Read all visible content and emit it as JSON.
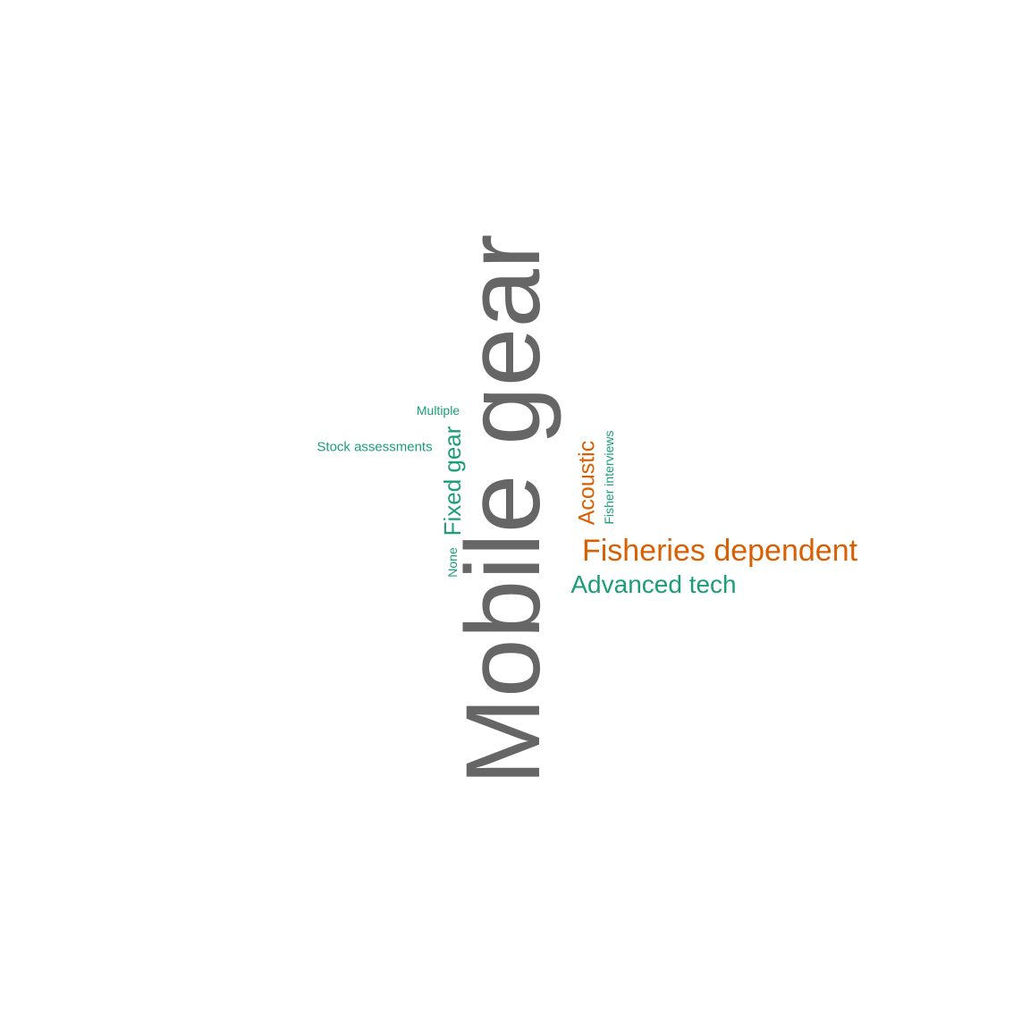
{
  "colors": {
    "gray": "#666666",
    "orange": "#d95f02",
    "teal": "#1b9e77",
    "background": "#ffffff"
  },
  "words": {
    "mobile_gear": {
      "text": "Mobile gear",
      "color": "#666666",
      "rotated": true
    },
    "fisheries_dependent": {
      "text": "Fisheries dependent",
      "color": "#d95f02",
      "rotated": false
    },
    "advanced_tech": {
      "text": "Advanced tech",
      "color": "#1b9e77",
      "rotated": false
    },
    "fixed_gear": {
      "text": "Fixed gear",
      "color": "#1b9e77",
      "rotated": true
    },
    "acoustic": {
      "text": "Acoustic",
      "color": "#d95f02",
      "rotated": true
    },
    "fisher_interviews": {
      "text": "Fisher interviews",
      "color": "#1b9e77",
      "rotated": true
    },
    "none": {
      "text": "None",
      "color": "#1b9e77",
      "rotated": true
    },
    "multiple": {
      "text": "Multiple",
      "color": "#1b9e77",
      "rotated": false
    },
    "stock_assessments": {
      "text": "Stock assessments",
      "color": "#1b9e77",
      "rotated": false
    }
  }
}
